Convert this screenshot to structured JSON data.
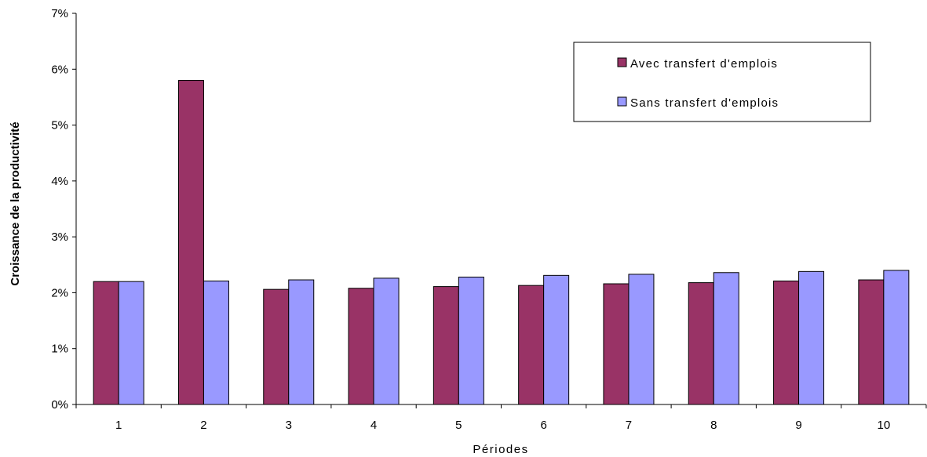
{
  "chart_data": {
    "type": "bar",
    "title": "",
    "xlabel": "Périodes",
    "ylabel": "Croissance de la productivité",
    "ylim": [
      0,
      7
    ],
    "yticks": [
      "0%",
      "1%",
      "2%",
      "3%",
      "4%",
      "5%",
      "6%",
      "7%"
    ],
    "grid": false,
    "legend_position": "top-right",
    "categories": [
      "1",
      "2",
      "3",
      "4",
      "5",
      "6",
      "7",
      "8",
      "9",
      "10"
    ],
    "series": [
      {
        "name": "Avec transfert d'emplois",
        "color": "#993366",
        "values": [
          2.2,
          5.8,
          2.06,
          2.08,
          2.11,
          2.13,
          2.16,
          2.18,
          2.21,
          2.23
        ]
      },
      {
        "name": "Sans transfert d'emplois",
        "color": "#9999ff",
        "values": [
          2.2,
          2.21,
          2.23,
          2.26,
          2.28,
          2.31,
          2.33,
          2.36,
          2.38,
          2.4
        ]
      }
    ]
  }
}
